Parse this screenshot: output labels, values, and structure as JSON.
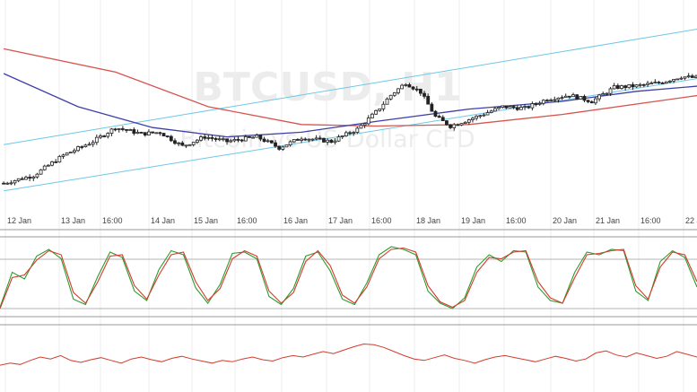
{
  "chart_data": [
    {
      "type": "candlestick",
      "title": "BTCUSD, H1",
      "subtitle": "Bitcoin vs US Dollar CFD",
      "x_tick_labels": [
        "12 Jan",
        "13 Jan",
        "16:00",
        "14 Jan",
        "15 Jan",
        "16:00",
        "16 Jan",
        "17 Jan",
        "16:00",
        "18 Jan",
        "19 Jan",
        "16:00",
        "20 Jan",
        "21 Jan",
        "16:00",
        "22 Jan"
      ],
      "grid": "vertical",
      "colors": {
        "candles": "#222222",
        "ma_slow": "#d9534f",
        "ma_fast": "#3f3fa8",
        "channel": "#6cc8e8"
      },
      "close_path": [
        [
          0,
          0.06
        ],
        [
          8,
          0.16
        ],
        [
          16,
          0.42
        ],
        [
          24,
          0.6
        ],
        [
          30,
          0.78
        ],
        [
          37,
          0.7
        ],
        [
          42,
          0.72
        ],
        [
          48,
          0.54
        ],
        [
          54,
          0.66
        ],
        [
          60,
          0.6
        ],
        [
          68,
          0.66
        ],
        [
          74,
          0.52
        ],
        [
          80,
          0.65
        ],
        [
          88,
          0.6
        ],
        [
          95,
          0.76
        ],
        [
          100,
          0.98
        ],
        [
          104,
          1.2
        ],
        [
          108,
          1.36
        ],
        [
          112,
          1.24
        ],
        [
          116,
          0.92
        ],
        [
          120,
          0.8
        ],
        [
          127,
          0.92
        ],
        [
          134,
          1.05
        ],
        [
          140,
          1.03
        ],
        [
          146,
          1.15
        ],
        [
          152,
          1.2
        ],
        [
          158,
          1.12
        ],
        [
          164,
          1.3
        ],
        [
          170,
          1.32
        ],
        [
          176,
          1.36
        ],
        [
          182,
          1.44
        ],
        [
          187,
          1.42
        ]
      ],
      "annotations": {
        "ma_slow": [
          [
            0,
            1.8
          ],
          [
            30,
            1.5
          ],
          [
            55,
            1.05
          ],
          [
            80,
            0.82
          ],
          [
            100,
            0.8
          ],
          [
            125,
            0.82
          ],
          [
            150,
            0.95
          ],
          [
            187,
            1.2
          ]
        ],
        "ma_fast": [
          [
            0,
            1.48
          ],
          [
            20,
            1.05
          ],
          [
            40,
            0.78
          ],
          [
            60,
            0.66
          ],
          [
            80,
            0.72
          ],
          [
            100,
            0.86
          ],
          [
            125,
            1.02
          ],
          [
            150,
            1.12
          ],
          [
            170,
            1.25
          ],
          [
            187,
            1.32
          ]
        ],
        "channel_upper": [
          [
            0,
            0.56
          ],
          [
            187,
            2.06
          ]
        ],
        "channel_lower": [
          [
            0,
            -0.04
          ],
          [
            187,
            1.42
          ]
        ]
      }
    },
    {
      "type": "line",
      "x_tick_labels": [],
      "ylim": [
        0,
        100
      ],
      "series": [
        {
          "color": "#2e9b2e",
          "values": [
            6,
            58,
            48,
            82,
            92,
            78,
            18,
            10,
            52,
            88,
            80,
            30,
            16,
            62,
            90,
            84,
            35,
            12,
            40,
            86,
            88,
            78,
            22,
            10,
            34,
            82,
            88,
            60,
            18,
            10,
            42,
            84,
            96,
            92,
            84,
            30,
            12,
            4,
            20,
            66,
            84,
            74,
            90,
            88,
            36,
            16,
            12,
            58,
            88,
            84,
            92,
            90,
            30,
            16,
            74,
            90,
            80,
            36
          ]
        },
        {
          "color": "#d23c2c",
          "values": [
            4,
            50,
            54,
            76,
            90,
            84,
            28,
            12,
            44,
            82,
            84,
            38,
            18,
            54,
            84,
            88,
            44,
            16,
            34,
            78,
            90,
            82,
            30,
            12,
            28,
            74,
            90,
            68,
            24,
            12,
            36,
            78,
            92,
            94,
            88,
            38,
            14,
            6,
            16,
            58,
            80,
            78,
            88,
            90,
            44,
            20,
            12,
            50,
            84,
            86,
            90,
            92,
            38,
            18,
            66,
            88,
            84,
            44
          ]
        }
      ]
    },
    {
      "type": "line",
      "x_tick_labels": [],
      "series": [
        {
          "color": "#d23c2c",
          "values": [
            34,
            40,
            36,
            48,
            58,
            52,
            62,
            48,
            42,
            50,
            56,
            48,
            40,
            52,
            58,
            50,
            44,
            54,
            60,
            52,
            46,
            40,
            48,
            44,
            52,
            58,
            50,
            46,
            56,
            62,
            58,
            66,
            74,
            68,
            78,
            88,
            96,
            94,
            86,
            74,
            62,
            52,
            48,
            56,
            64,
            54,
            48,
            40,
            50,
            58,
            62,
            56,
            50,
            44,
            52,
            60,
            54,
            46,
            52,
            70,
            76,
            64,
            58,
            70,
            62,
            54,
            60,
            74,
            66,
            58
          ]
        }
      ]
    }
  ]
}
